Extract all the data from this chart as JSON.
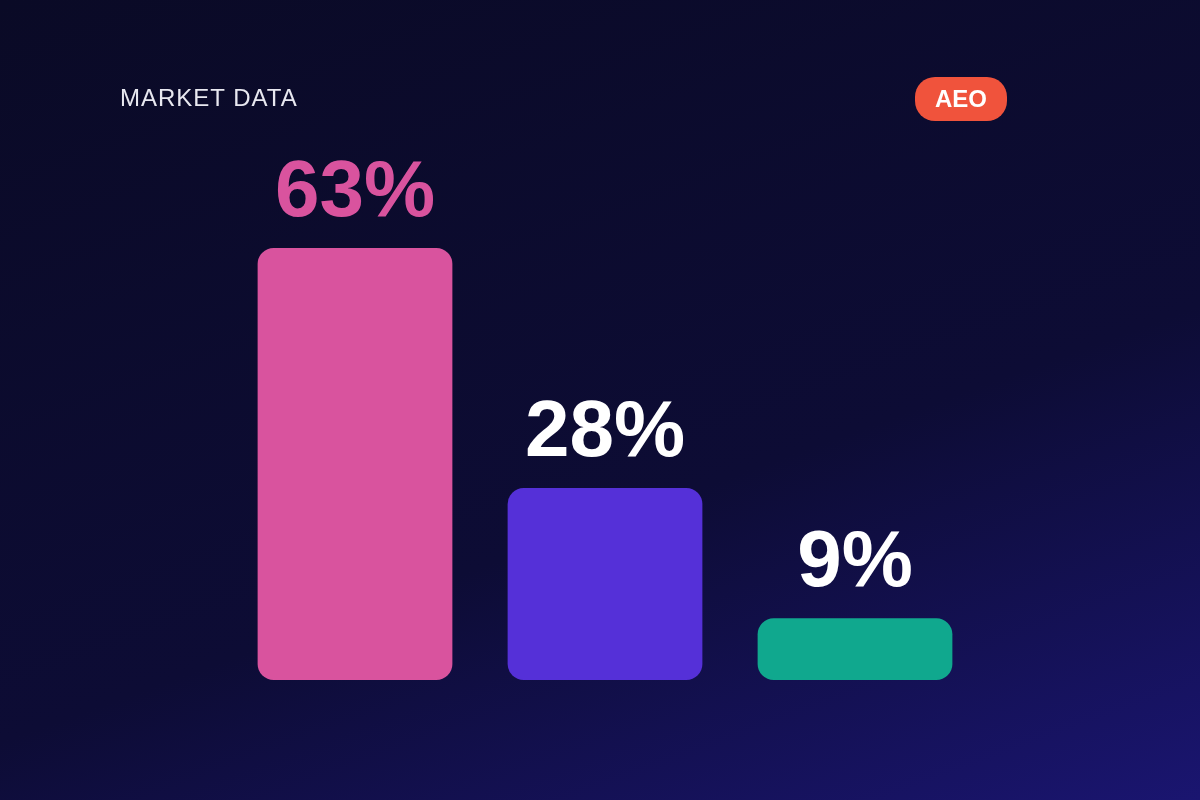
{
  "chart_data": {
    "type": "bar",
    "title": "MARKET DATA",
    "annotations": [
      "AEO"
    ],
    "categories": [
      null,
      null,
      null
    ],
    "values": [
      63,
      28,
      9
    ],
    "colors": [
      "#d9539e",
      "#5530d8",
      "#10a88e"
    ],
    "value_labels": [
      "63%",
      "28%",
      "9%"
    ]
  }
}
